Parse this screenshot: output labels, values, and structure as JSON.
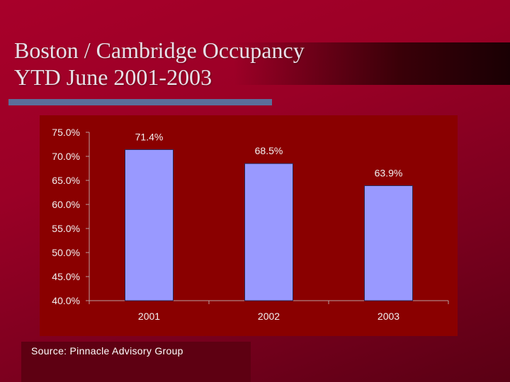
{
  "slide": {
    "title": "Boston / Cambridge Occupancy\nYTD June 2001-2003",
    "source": "Source: Pinnacle Advisory Group"
  },
  "colors": {
    "background": "#9a0026",
    "plot_area": "#8a0000",
    "bar": "#9999ff",
    "text": "#f2f2f2",
    "rule": "#5b6e9a"
  },
  "chart_data": {
    "type": "bar",
    "title": "",
    "xlabel": "",
    "ylabel": "",
    "categories": [
      "2001",
      "2002",
      "2003"
    ],
    "values": [
      71.4,
      68.5,
      63.9
    ],
    "data_labels": [
      "71.4%",
      "68.5%",
      "63.9%"
    ],
    "ylim": [
      40.0,
      75.0
    ],
    "yticks": [
      40.0,
      45.0,
      50.0,
      55.0,
      60.0,
      65.0,
      70.0,
      75.0
    ],
    "ytick_labels": [
      "40.0%",
      "45.0%",
      "50.0%",
      "55.0%",
      "60.0%",
      "65.0%",
      "70.0%",
      "75.0%"
    ],
    "grid": false,
    "legend": "none"
  }
}
